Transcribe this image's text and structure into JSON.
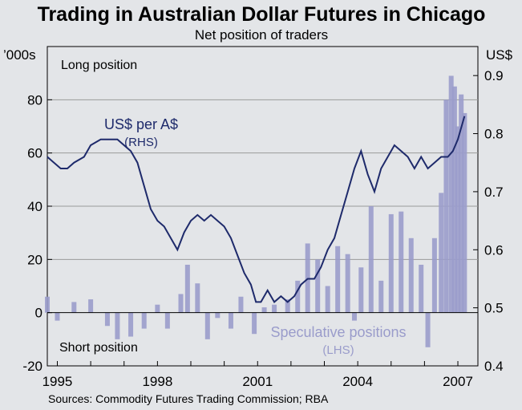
{
  "chart_data": {
    "type": "bar+line",
    "title": "Trading in Australian Dollar Futures in Chicago",
    "subtitle": "Net position of traders",
    "left_axis": {
      "unit": "’000s",
      "ylim": [
        -20,
        100
      ],
      "ticks": [
        -20,
        0,
        20,
        40,
        60,
        80
      ]
    },
    "right_axis": {
      "unit": "US$",
      "ylim": [
        0.4,
        0.95
      ],
      "ticks": [
        "0.4",
        "0.5",
        "0.6",
        "0.7",
        "0.8",
        "0.9"
      ]
    },
    "x_axis": {
      "range": [
        1994.7,
        2007.6
      ],
      "tick_labels": [
        "1995",
        "1998",
        "2001",
        "2004",
        "2007"
      ],
      "tick_values": [
        1995,
        1998,
        2001,
        2004,
        2007
      ]
    },
    "annotations": {
      "top": "Long position",
      "bottom": "Short position"
    },
    "series": [
      {
        "name": "Speculative positions",
        "axis_label": "(LHS)",
        "kind": "bar",
        "color": "#9a9ccb",
        "x": [
          1994.7,
          1995.0,
          1995.5,
          1996.0,
          1996.5,
          1996.8,
          1997.2,
          1997.6,
          1998.0,
          1998.3,
          1998.7,
          1998.9,
          1999.2,
          1999.5,
          1999.8,
          2000.2,
          2000.5,
          2000.9,
          2001.2,
          2001.5,
          2001.9,
          2002.2,
          2002.5,
          2002.8,
          2003.1,
          2003.4,
          2003.7,
          2003.9,
          2004.1,
          2004.4,
          2004.7,
          2005.0,
          2005.3,
          2005.6,
          2005.9,
          2006.1,
          2006.3,
          2006.5,
          2006.65,
          2006.8,
          2006.9,
          2007.0,
          2007.1,
          2007.2
        ],
        "values": [
          6,
          -3,
          4,
          5,
          -5,
          -10,
          -9,
          -6,
          3,
          -6,
          7,
          18,
          11,
          -10,
          -2,
          -6,
          6,
          -8,
          2,
          3,
          5,
          12,
          26,
          20,
          10,
          25,
          22,
          -3,
          17,
          40,
          12,
          37,
          38,
          28,
          18,
          -13,
          28,
          45,
          80,
          89,
          85,
          70,
          82,
          75
        ]
      },
      {
        "name": "US$ per A$",
        "axis_label": "(RHS)",
        "kind": "line",
        "color": "#1e2a6b",
        "x": [
          1994.7,
          1994.9,
          1995.1,
          1995.3,
          1995.5,
          1995.8,
          1996.0,
          1996.3,
          1996.6,
          1996.8,
          1997.0,
          1997.2,
          1997.4,
          1997.6,
          1997.8,
          1998.0,
          1998.2,
          1998.4,
          1998.6,
          1998.8,
          1999.0,
          1999.2,
          1999.4,
          1999.6,
          1999.8,
          2000.0,
          2000.2,
          2000.4,
          2000.6,
          2000.8,
          2000.95,
          2001.1,
          2001.3,
          2001.5,
          2001.7,
          2001.9,
          2002.1,
          2002.3,
          2002.5,
          2002.7,
          2002.9,
          2003.1,
          2003.3,
          2003.5,
          2003.7,
          2003.9,
          2004.1,
          2004.3,
          2004.5,
          2004.7,
          2004.9,
          2005.1,
          2005.3,
          2005.5,
          2005.7,
          2005.9,
          2006.1,
          2006.3,
          2006.5,
          2006.7,
          2006.85,
          2007.0,
          2007.2
        ],
        "values": [
          0.76,
          0.75,
          0.74,
          0.74,
          0.75,
          0.76,
          0.78,
          0.79,
          0.79,
          0.79,
          0.78,
          0.77,
          0.75,
          0.71,
          0.67,
          0.65,
          0.64,
          0.62,
          0.6,
          0.63,
          0.65,
          0.66,
          0.65,
          0.66,
          0.65,
          0.64,
          0.62,
          0.59,
          0.56,
          0.54,
          0.51,
          0.51,
          0.53,
          0.51,
          0.52,
          0.51,
          0.52,
          0.54,
          0.55,
          0.55,
          0.57,
          0.6,
          0.62,
          0.66,
          0.7,
          0.74,
          0.77,
          0.73,
          0.7,
          0.74,
          0.76,
          0.78,
          0.77,
          0.76,
          0.74,
          0.76,
          0.74,
          0.75,
          0.76,
          0.76,
          0.77,
          0.79,
          0.83
        ]
      }
    ],
    "labels": {
      "line_name": "US$ per A$",
      "line_axis": "(RHS)",
      "bar_name": "Speculative positions",
      "bar_axis": "(LHS)"
    }
  },
  "footer": {
    "sources": "Sources: Commodity Futures Trading Commission; RBA"
  }
}
